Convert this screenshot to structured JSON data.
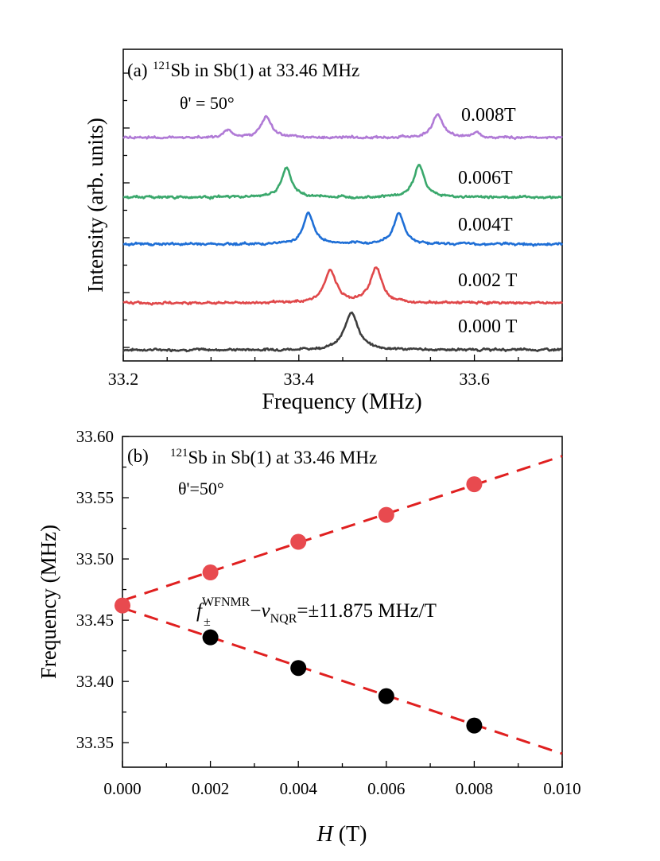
{
  "chart_data": [
    {
      "panel": "(a)",
      "type": "line",
      "title_prefix": "(a)",
      "title_sup": "121",
      "title_main": "Sb in Sb(1) at 33.46 MHz",
      "angle_label": "θ' = 50°",
      "xlabel": "Frequency (MHz)",
      "ylabel": "Intensity (arb. units)",
      "xlim": [
        33.2,
        33.7
      ],
      "xticks": [
        33.2,
        33.4,
        33.6
      ],
      "xtick_labels": [
        "33.2",
        "33.4",
        "33.6"
      ],
      "y_scale": "arbitrary, offset traces",
      "noise_level": 0.045,
      "series": [
        {
          "name": "0.000 T",
          "field_T": 0.0,
          "offset": 0,
          "color": "#3d3d3d",
          "peaks": [
            {
              "center": 33.46,
              "amplitude": 1.0,
              "width": 0.009
            }
          ]
        },
        {
          "name": "0.002 T",
          "field_T": 0.002,
          "offset": 1,
          "color": "#e0484a",
          "peaks": [
            {
              "center": 33.436,
              "amplitude": 0.85,
              "width": 0.008
            },
            {
              "center": 33.488,
              "amplitude": 0.92,
              "width": 0.008
            }
          ]
        },
        {
          "name": "0.004T",
          "field_T": 0.004,
          "offset": 2,
          "color": "#1f6fd6",
          "peaks": [
            {
              "center": 33.411,
              "amplitude": 0.82,
              "width": 0.007
            },
            {
              "center": 33.514,
              "amplitude": 0.82,
              "width": 0.007
            }
          ]
        },
        {
          "name": "0.006T",
          "field_T": 0.006,
          "offset": 3,
          "color": "#3aa86c",
          "peaks": [
            {
              "center": 33.386,
              "amplitude": 0.75,
              "width": 0.007
            },
            {
              "center": 33.537,
              "amplitude": 0.85,
              "width": 0.007
            }
          ]
        },
        {
          "name": "0.008T",
          "field_T": 0.008,
          "offset": 4,
          "color": "#b07ad6",
          "peaks": [
            {
              "center": 33.363,
              "amplitude": 0.55,
              "width": 0.007
            },
            {
              "center": 33.558,
              "amplitude": 0.6,
              "width": 0.007
            },
            {
              "center": 33.32,
              "amplitude": 0.2,
              "width": 0.005
            },
            {
              "center": 33.602,
              "amplitude": 0.15,
              "width": 0.005
            }
          ]
        }
      ]
    },
    {
      "panel": "(b)",
      "type": "scatter",
      "title_prefix": "(b)",
      "title_sup": "121",
      "title_main": "Sb in Sb(1) at 33.46 MHz",
      "angle_label": "θ'=50°",
      "xlabel_italic": "H",
      "xlabel_rest": " (T)",
      "ylabel": "Frequency (MHz)",
      "xlim": [
        0.0,
        0.01
      ],
      "ylim": [
        33.33,
        33.6
      ],
      "xticks": [
        0.0,
        0.002,
        0.004,
        0.006,
        0.008,
        0.01
      ],
      "xtick_labels": [
        "0.000",
        "0.002",
        "0.004",
        "0.006",
        "0.008",
        "0.010"
      ],
      "yticks": [
        33.35,
        33.4,
        33.45,
        33.5,
        33.55,
        33.6
      ],
      "ytick_labels": [
        "33.35",
        "33.40",
        "33.45",
        "33.50",
        "33.55",
        "33.60"
      ],
      "series": [
        {
          "name": "upper",
          "color": "#e84a4f",
          "x": [
            0.0,
            0.002,
            0.004,
            0.006,
            0.008
          ],
          "y": [
            33.462,
            33.489,
            33.514,
            33.536,
            33.561
          ]
        },
        {
          "name": "lower",
          "color": "#000000",
          "x": [
            0.002,
            0.004,
            0.006,
            0.008
          ],
          "y": [
            33.436,
            33.411,
            33.388,
            33.364
          ]
        }
      ],
      "fit_lines": [
        {
          "name": "upper-fit",
          "color": "#e02020",
          "x": [
            0.0,
            0.01
          ],
          "y": [
            33.466,
            33.584
          ]
        },
        {
          "name": "lower-fit",
          "color": "#e02020",
          "x": [
            0.0,
            0.01
          ],
          "y": [
            33.46,
            33.341
          ]
        }
      ],
      "annotation": {
        "f": "f",
        "f_sub": "±",
        "f_sup": "WFNMR",
        "minus": "−",
        "nu": "ν",
        "nu_sub": "NQR",
        "rest": "=±11.875 MHz/T"
      }
    }
  ]
}
